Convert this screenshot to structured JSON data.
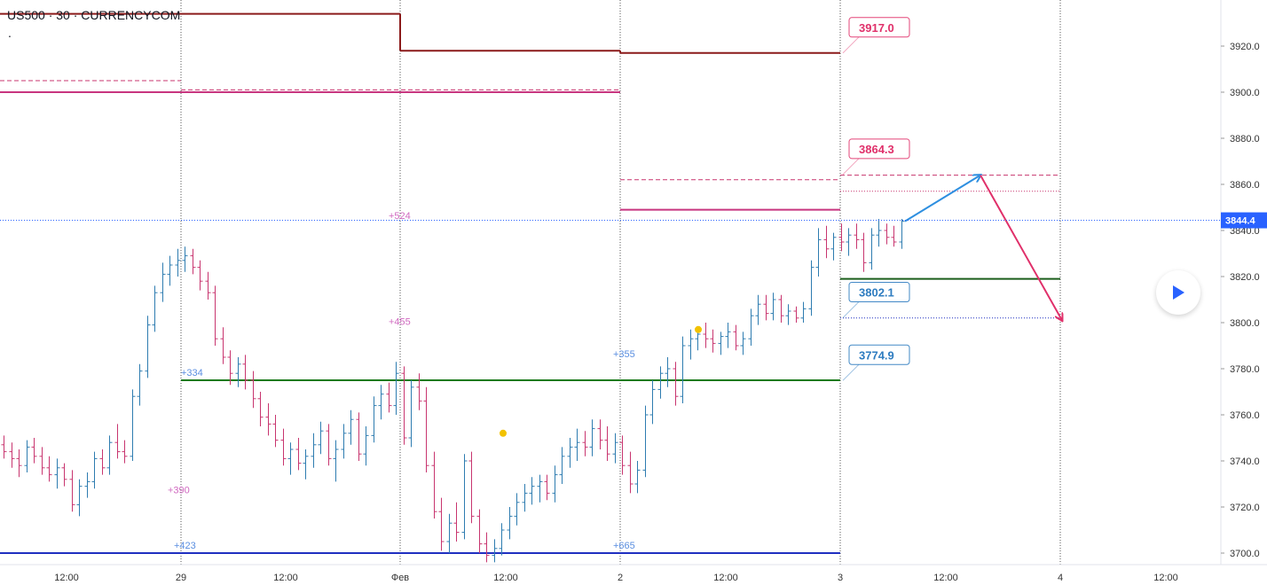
{
  "symbol": {
    "title": "US500 · 30 · CURRENCYCOM",
    "dot": "."
  },
  "price_scale": {
    "ticks": [
      "3920.0",
      "3900.0",
      "3880.0",
      "3860.0",
      "3840.0",
      "3820.0",
      "3800.0",
      "3780.0",
      "3760.0",
      "3740.0",
      "3720.0",
      "3700.0"
    ],
    "current_price": "3844.4",
    "current_price_color": "#2962ff"
  },
  "time_axis": {
    "labels": [
      "12:00",
      "29",
      "12:00",
      "Фев",
      "12:00",
      "2",
      "12:00",
      "3",
      "12:00",
      "4",
      "12:00"
    ]
  },
  "chart_data": {
    "type": "bar",
    "symbol": "US500",
    "interval": "30",
    "ylim": [
      3696,
      3934
    ],
    "up_color": "#2e7cb0",
    "down_color": "#c8356f",
    "levels": [
      {
        "price": 3934,
        "color": "#8b1a1a",
        "style": "solid",
        "from": "28 00:00",
        "to": "Фев 00:00"
      },
      {
        "price": 3918,
        "color": "#8b1a1a",
        "style": "solid",
        "from": "Фев 00:00",
        "to": "2 00:00"
      },
      {
        "price": 3917,
        "color": "#8b1a1a",
        "style": "solid",
        "from": "2 00:00",
        "to": "3 00:00"
      },
      {
        "price": 3905,
        "color": "#c8356f",
        "style": "dashed",
        "from": "28 00:00",
        "to": "29 00:00"
      },
      {
        "price": 3900,
        "color": "#c8357f",
        "style": "solid",
        "from": "28 00:00",
        "to": "2 00:00"
      },
      {
        "price": 3901,
        "color": "#c8356f",
        "style": "dashed",
        "from": "29 00:00",
        "to": "2 00:00"
      },
      {
        "price": 3862,
        "color": "#c8356f",
        "style": "dashed",
        "from": "2 00:00",
        "to": "3 00:00"
      },
      {
        "price": 3849,
        "color": "#c8357f",
        "style": "solid",
        "from": "2 00:00",
        "to": "3 00:00"
      },
      {
        "price": 3775,
        "color": "#1b7a1b",
        "style": "solid",
        "from": "29 00:00",
        "to": "3 00:00"
      },
      {
        "price": 3700,
        "color": "#1f2fc0",
        "style": "solid",
        "from": "28 00:00",
        "to": "3 00:00"
      },
      {
        "price": 3864,
        "color": "#c8356f",
        "style": "dashed",
        "from": "3 00:00",
        "to": "4 00:00"
      },
      {
        "price": 3857,
        "color": "#c8356f",
        "style": "dotted",
        "from": "3 00:00",
        "to": "4 00:00"
      },
      {
        "price": 3819,
        "color": "#1b5e1b",
        "style": "solid",
        "from": "3 00:00",
        "to": "4 00:00"
      },
      {
        "price": 3802,
        "color": "#1f2fc0",
        "style": "dotted",
        "from": "3 00:00",
        "to": "4 00:00"
      }
    ],
    "price_tags": [
      {
        "text": "3917.0",
        "color": "#e0306a"
      },
      {
        "text": "3864.3",
        "color": "#e0306a"
      },
      {
        "text": "3802.1",
        "color": "#2e7cc0"
      },
      {
        "text": "3774.9",
        "color": "#2e7cc0"
      }
    ],
    "annotations": [
      {
        "text": "+524",
        "color": "#d06ac0"
      },
      {
        "text": "+455",
        "color": "#d06ac0"
      },
      {
        "text": "+390",
        "color": "#d06ac0"
      },
      {
        "text": "+355",
        "color": "#5a8ee0"
      },
      {
        "text": "+423",
        "color": "#5a8ee0"
      },
      {
        "text": "+665",
        "color": "#5a8ee0"
      },
      {
        "text": "+334",
        "color": "#5a8ee0"
      }
    ],
    "forecast": [
      {
        "from_price": 3844,
        "to_price": 3864,
        "color": "#2e8fe0"
      },
      {
        "from_price": 3864,
        "to_price": 3801,
        "color": "#e0306a"
      }
    ],
    "markers": [
      {
        "price": 3752,
        "color": "#f2c200"
      },
      {
        "price": 3797,
        "color": "#f2c200"
      }
    ],
    "bars": [
      [
        3747,
        3751,
        3741,
        3744
      ],
      [
        3744,
        3748,
        3737,
        3741
      ],
      [
        3741,
        3745,
        3733,
        3738
      ],
      [
        3738,
        3749,
        3735,
        3746
      ],
      [
        3746,
        3750,
        3739,
        3742
      ],
      [
        3742,
        3746,
        3734,
        3737
      ],
      [
        3737,
        3742,
        3731,
        3734
      ],
      [
        3734,
        3741,
        3728,
        3737
      ],
      [
        3737,
        3739,
        3729,
        3732
      ],
      [
        3732,
        3736,
        3718,
        3721
      ],
      [
        3721,
        3732,
        3716,
        3729
      ],
      [
        3729,
        3735,
        3724,
        3731
      ],
      [
        3731,
        3744,
        3728,
        3741
      ],
      [
        3741,
        3745,
        3734,
        3737
      ],
      [
        3737,
        3751,
        3734,
        3748
      ],
      [
        3748,
        3756,
        3741,
        3744
      ],
      [
        3744,
        3749,
        3739,
        3742
      ],
      [
        3742,
        3771,
        3740,
        3768
      ],
      [
        3768,
        3782,
        3764,
        3779
      ],
      [
        3779,
        3803,
        3776,
        3799
      ],
      [
        3799,
        3816,
        3796,
        3813
      ],
      [
        3813,
        3826,
        3809,
        3821
      ],
      [
        3821,
        3829,
        3816,
        3825
      ],
      [
        3825,
        3832,
        3820,
        3827
      ],
      [
        3827,
        3833,
        3822,
        3829
      ],
      [
        3829,
        3832,
        3821,
        3824
      ],
      [
        3824,
        3827,
        3814,
        3818
      ],
      [
        3818,
        3822,
        3810,
        3813
      ],
      [
        3813,
        3816,
        3790,
        3793
      ],
      [
        3793,
        3798,
        3782,
        3785
      ],
      [
        3785,
        3788,
        3773,
        3778
      ],
      [
        3778,
        3785,
        3772,
        3782
      ],
      [
        3782,
        3786,
        3771,
        3775
      ],
      [
        3775,
        3779,
        3763,
        3767
      ],
      [
        3767,
        3770,
        3755,
        3759
      ],
      [
        3759,
        3765,
        3751,
        3756
      ],
      [
        3756,
        3760,
        3746,
        3749
      ],
      [
        3749,
        3754,
        3738,
        3741
      ],
      [
        3741,
        3748,
        3734,
        3745
      ],
      [
        3745,
        3750,
        3736,
        3739
      ],
      [
        3739,
        3745,
        3732,
        3742
      ],
      [
        3742,
        3752,
        3737,
        3747
      ],
      [
        3747,
        3757,
        3743,
        3753
      ],
      [
        3753,
        3756,
        3738,
        3741
      ],
      [
        3741,
        3749,
        3731,
        3745
      ],
      [
        3745,
        3756,
        3741,
        3752
      ],
      [
        3752,
        3762,
        3747,
        3758
      ],
      [
        3758,
        3761,
        3740,
        3743
      ],
      [
        3743,
        3755,
        3738,
        3751
      ],
      [
        3751,
        3768,
        3748,
        3764
      ],
      [
        3764,
        3773,
        3758,
        3769
      ],
      [
        3769,
        3774,
        3761,
        3764
      ],
      [
        3764,
        3783,
        3760,
        3778
      ],
      [
        3778,
        3781,
        3747,
        3750
      ],
      [
        3750,
        3775,
        3746,
        3772
      ],
      [
        3772,
        3778,
        3762,
        3766
      ],
      [
        3766,
        3772,
        3735,
        3738
      ],
      [
        3738,
        3744,
        3715,
        3718
      ],
      [
        3718,
        3724,
        3701,
        3705
      ],
      [
        3705,
        3717,
        3700,
        3713
      ],
      [
        3713,
        3722,
        3705,
        3709
      ],
      [
        3709,
        3743,
        3706,
        3740
      ],
      [
        3740,
        3744,
        3713,
        3716
      ],
      [
        3716,
        3719,
        3700,
        3704
      ],
      [
        3704,
        3709,
        3696,
        3699
      ],
      [
        3699,
        3706,
        3696,
        3702
      ],
      [
        3702,
        3713,
        3699,
        3710
      ],
      [
        3710,
        3720,
        3706,
        3716
      ],
      [
        3716,
        3726,
        3712,
        3722
      ],
      [
        3722,
        3730,
        3718,
        3726
      ],
      [
        3726,
        3733,
        3721,
        3729
      ],
      [
        3729,
        3734,
        3722,
        3731
      ],
      [
        3731,
        3734,
        3723,
        3726
      ],
      [
        3726,
        3738,
        3722,
        3734
      ],
      [
        3734,
        3746,
        3730,
        3742
      ],
      [
        3742,
        3750,
        3737,
        3746
      ],
      [
        3746,
        3754,
        3740,
        3748
      ],
      [
        3748,
        3753,
        3742,
        3746
      ],
      [
        3746,
        3758,
        3742,
        3754
      ],
      [
        3754,
        3758,
        3745,
        3749
      ],
      [
        3749,
        3755,
        3740,
        3743
      ],
      [
        3743,
        3752,
        3739,
        3748
      ],
      [
        3748,
        3751,
        3734,
        3738
      ],
      [
        3738,
        3744,
        3726,
        3730
      ],
      [
        3730,
        3740,
        3726,
        3736
      ],
      [
        3736,
        3764,
        3733,
        3760
      ],
      [
        3760,
        3775,
        3756,
        3771
      ],
      [
        3771,
        3781,
        3767,
        3778
      ],
      [
        3778,
        3785,
        3772,
        3780
      ],
      [
        3780,
        3783,
        3764,
        3768
      ],
      [
        3768,
        3794,
        3765,
        3790
      ],
      [
        3790,
        3797,
        3784,
        3793
      ],
      [
        3793,
        3798,
        3788,
        3795
      ],
      [
        3795,
        3800,
        3789,
        3793
      ],
      [
        3793,
        3797,
        3787,
        3791
      ],
      [
        3791,
        3796,
        3786,
        3794
      ],
      [
        3794,
        3800,
        3789,
        3796
      ],
      [
        3796,
        3799,
        3788,
        3790
      ],
      [
        3790,
        3796,
        3786,
        3793
      ],
      [
        3793,
        3806,
        3790,
        3803
      ],
      [
        3803,
        3812,
        3799,
        3808
      ],
      [
        3808,
        3812,
        3801,
        3804
      ],
      [
        3804,
        3813,
        3801,
        3810
      ],
      [
        3810,
        3812,
        3800,
        3803
      ],
      [
        3803,
        3808,
        3799,
        3805
      ],
      [
        3805,
        3807,
        3800,
        3802
      ],
      [
        3802,
        3809,
        3800,
        3806
      ],
      [
        3806,
        3827,
        3803,
        3824
      ],
      [
        3824,
        3841,
        3820,
        3836
      ],
      [
        3836,
        3842,
        3828,
        3832
      ],
      [
        3832,
        3839,
        3827,
        3837
      ],
      [
        3837,
        3843,
        3831,
        3835
      ],
      [
        3835,
        3841,
        3829,
        3838
      ],
      [
        3838,
        3843,
        3832,
        3836
      ],
      [
        3836,
        3839,
        3822,
        3826
      ],
      [
        3826,
        3841,
        3823,
        3838
      ],
      [
        3838,
        3845,
        3833,
        3840
      ],
      [
        3840,
        3843,
        3834,
        3837
      ],
      [
        3837,
        3842,
        3833,
        3835
      ],
      [
        3835,
        3845,
        3832,
        3844
      ]
    ]
  },
  "controls": {
    "play_icon": "play-icon"
  }
}
